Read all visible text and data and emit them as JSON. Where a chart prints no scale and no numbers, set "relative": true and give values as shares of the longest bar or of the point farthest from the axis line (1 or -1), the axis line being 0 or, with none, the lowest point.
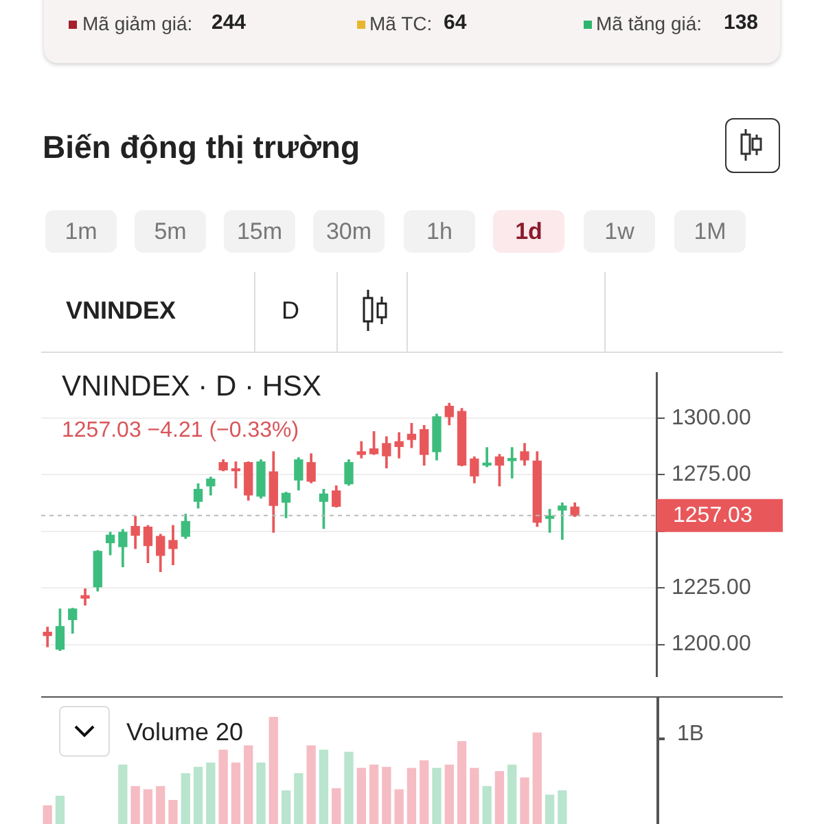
{
  "chart_data": [
    {
      "type": "candlestick",
      "title": "VNINDEX · D · HSX",
      "subtitle": "1257.03  −4.21 (−0.33%)",
      "annotations": [
        "Mã giảm giá:",
        "244",
        "Mã TC:",
        "64",
        "Mã tăng giá:",
        "138",
        "Biến động thị trường",
        "1m",
        "5m",
        "15m",
        "30m",
        "1h",
        "1d",
        "1w",
        "1M",
        "VNINDEX",
        "D"
      ],
      "categories": [
        null,
        null,
        null,
        null,
        null,
        null,
        null,
        null,
        null,
        null,
        null,
        null,
        null,
        null,
        null,
        null,
        null,
        null,
        null,
        null,
        null,
        null,
        null,
        null,
        null,
        null,
        null,
        null,
        null,
        null,
        null,
        null,
        null,
        null,
        null,
        null,
        null,
        null,
        null,
        null,
        null,
        null,
        null,
        null,
        null,
        null,
        null,
        null,
        null
      ],
      "ohlc": [
        [
          1205.5,
          1207.7,
          1199,
          1204
        ],
        [
          1198,
          1215.7,
          1197.4,
          1208
        ],
        [
          1211,
          1216,
          1205,
          1215.7
        ],
        [
          1221.6,
          1224.6,
          1217.5,
          1220.5
        ],
        [
          1225.5,
          1241.5,
          1223.7,
          1241.2
        ],
        [
          1245,
          1249.6,
          1239.7,
          1248.3
        ],
        [
          1243.3,
          1250.8,
          1234.4,
          1249.6
        ],
        [
          1252.2,
          1256.7,
          1242.4,
          1248.3
        ],
        [
          1251.9,
          1252.6,
          1236.2,
          1243.7
        ],
        [
          1247.8,
          1248.7,
          1232.3,
          1239.4
        ],
        [
          1246,
          1252.6,
          1235.3,
          1242.4
        ],
        [
          1247.8,
          1257.6,
          1246.9,
          1254.4
        ],
        [
          1263.3,
          1271,
          1260.3,
          1268.6
        ],
        [
          1270.1,
          1274,
          1266.1,
          1273.1
        ],
        [
          1280.4,
          1281.6,
          1276.8,
          1277.2
        ],
        [
          1277.7,
          1280.7,
          1269.2,
          1276.8
        ],
        [
          1280.4,
          1280.7,
          1263.8,
          1266.1
        ],
        [
          1265.6,
          1281.6,
          1264.7,
          1280.7
        ],
        [
          1276.3,
          1285.2,
          1249.6,
          1261.5
        ],
        [
          1262.9,
          1267.3,
          1256.1,
          1266.8
        ],
        [
          1272.7,
          1282.5,
          1268.3,
          1281.6
        ],
        [
          1280.4,
          1284.3,
          1271.5,
          1272.2
        ],
        [
          1263.3,
          1268.6,
          1251.3,
          1266.5
        ],
        [
          1267.9,
          1270.1,
          1260.8,
          1261.1
        ],
        [
          1271,
          1281.6,
          1270.4,
          1280.4
        ],
        [
          1285.2,
          1289.7,
          1282.5,
          1284
        ],
        [
          1286.5,
          1294.1,
          1284,
          1284.3
        ],
        [
          1288.8,
          1291.8,
          1278.1,
          1283.4
        ],
        [
          1289.7,
          1293.6,
          1282.5,
          1287.5
        ],
        [
          1292.9,
          1297.7,
          1287,
          1290.6
        ],
        [
          1295,
          1296.8,
          1279.3,
          1284
        ],
        [
          1285.2,
          1301.8,
          1281.6,
          1300.7
        ],
        [
          1305.3,
          1306.6,
          1297.1,
          1300.7
        ],
        [
          1303,
          1304.3,
          1279,
          1279.3
        ],
        [
          1282,
          1282.9,
          1271.5,
          1274.5
        ],
        [
          1279.3,
          1287,
          1278.6,
          1280.2
        ],
        [
          1282.9,
          1284,
          1270.1,
          1279.3
        ],
        [
          1281.3,
          1287,
          1273.6,
          1282.2
        ],
        [
          1285.2,
          1288.8,
          1279.3,
          1281.6
        ],
        [
          1281.1,
          1285.2,
          1252.2,
          1254
        ],
        [
          1255.8,
          1259.7,
          1249.6,
          1256.7
        ],
        [
          1259.4,
          1262.6,
          1246.5,
          1261.24
        ],
        [
          1260.8,
          1262.6,
          1256.6,
          1257.03
        ],
        null,
        null,
        null,
        null,
        null,
        null
      ],
      "colors": [
        "#e8585b",
        "#3dbd7d",
        "#3dbd7d",
        "#e8585b",
        "#3dbd7d",
        "#3dbd7d",
        "#3dbd7d",
        "#e8585b",
        "#e8585b",
        "#e8585b",
        "#e8585b",
        "#3dbd7d",
        "#3dbd7d",
        "#3dbd7d",
        "#e8585b",
        "#e8585b",
        "#e8585b",
        "#3dbd7d",
        "#e8585b",
        "#3dbd7d",
        "#3dbd7d",
        "#e8585b",
        "#3dbd7d",
        "#e8585b",
        "#3dbd7d",
        "#e8585b",
        "#e8585b",
        "#e8585b",
        "#e8585b",
        "#e8585b",
        "#e8585b",
        "#3dbd7d",
        "#e8585b",
        "#e8585b",
        "#e8585b",
        "#3dbd7d",
        "#e8585b",
        "#3dbd7d",
        "#e8585b",
        "#e8585b",
        "#3dbd7d",
        "#3dbd7d",
        "#e8585b",
        "#e8585b",
        "#e8585b",
        "#e8585b",
        "#e8585b",
        "#e8585b",
        "#e8585b"
      ],
      "ylim": [
        1186,
        1320
      ],
      "yticks": [
        {
          "value": 1200,
          "label": "1200.00"
        },
        {
          "value": 1225,
          "label": "1225.00"
        },
        {
          "value": 1250,
          "label": null
        },
        {
          "value": 1275,
          "label": "1275.00"
        },
        {
          "value": 1300,
          "label": "1300.00"
        }
      ],
      "grid": "y",
      "tick_labels": "y",
      "ref_lines": [
        {
          "axis": "y",
          "value": 1257.03,
          "label": "1257.03",
          "color": "#bbbbbb",
          "line_style": "dashed"
        }
      ]
    },
    {
      "type": "bar",
      "title": "Volume 20",
      "annotations": [
        "1B"
      ],
      "relative": true,
      "tick_labels": false,
      "categories": [
        null,
        null,
        null,
        null,
        null,
        null,
        null,
        null,
        null,
        null,
        null,
        null,
        null,
        null,
        null,
        null,
        null,
        null,
        null,
        null,
        null,
        null,
        null,
        null,
        null,
        null,
        null,
        null,
        null,
        null,
        null,
        null,
        null,
        null,
        null,
        null,
        null,
        null,
        null,
        null,
        null,
        null,
        null,
        null,
        null,
        null,
        null,
        null,
        null
      ],
      "values": [
        0.17,
        0.26,
        null,
        null,
        null,
        null,
        0.55,
        0.35,
        0.32,
        0.35,
        0.22,
        0.47,
        0.53,
        0.57,
        0.69,
        0.57,
        0.73,
        0.57,
        1,
        0.31,
        0.47,
        0.73,
        0.69,
        0.33,
        0.67,
        0.52,
        0.55,
        0.53,
        0.32,
        0.52,
        0.59,
        0.52,
        0.55,
        0.77,
        0.52,
        0.35,
        0.49,
        0.55,
        0.43,
        0.85,
        0.27,
        0.31,
        null,
        null,
        null,
        null,
        null,
        null,
        null
      ],
      "colors": [
        "#f5bcc3",
        "#b9e4cd",
        "#b9e4cd",
        "#f5bcc3",
        "#b9e4cd",
        "#b9e4cd",
        "#b9e4cd",
        "#f5bcc3",
        "#f5bcc3",
        "#f5bcc3",
        "#f5bcc3",
        "#b9e4cd",
        "#b9e4cd",
        "#b9e4cd",
        "#f5bcc3",
        "#f5bcc3",
        "#f5bcc3",
        "#b9e4cd",
        "#f5bcc3",
        "#b9e4cd",
        "#b9e4cd",
        "#f5bcc3",
        "#b9e4cd",
        "#f5bcc3",
        "#b9e4cd",
        "#f5bcc3",
        "#f5bcc3",
        "#f5bcc3",
        "#f5bcc3",
        "#f5bcc3",
        "#f5bcc3",
        "#b9e4cd",
        "#f5bcc3",
        "#f5bcc3",
        "#f5bcc3",
        "#b9e4cd",
        "#f5bcc3",
        "#b9e4cd",
        "#f5bcc3",
        "#f5bcc3",
        "#b9e4cd",
        "#b9e4cd",
        "#f5bcc3",
        "#f5bcc3",
        "#f5bcc3",
        "#f5bcc3",
        "#f5bcc3",
        "#f5bcc3",
        "#f5bcc3"
      ]
    }
  ]
}
